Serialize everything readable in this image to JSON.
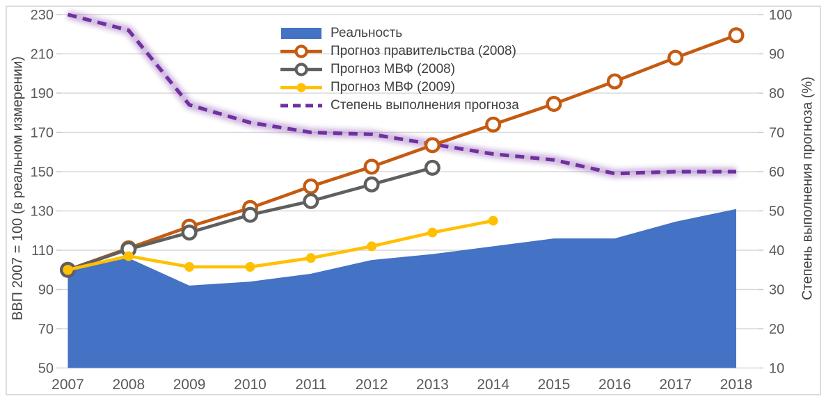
{
  "chart_data": {
    "type": "combo",
    "title": "",
    "grid": true,
    "legend_position": "top-center",
    "categories": [
      "2007",
      "2008",
      "2009",
      "2010",
      "2011",
      "2012",
      "2013",
      "2014",
      "2015",
      "2016",
      "2017",
      "2018"
    ],
    "left_axis": {
      "label": "ВВП 2007 = 100 (в реальном измерении)",
      "min": 50,
      "max": 230,
      "step": 20,
      "ticks": [
        230,
        210,
        190,
        170,
        150,
        130,
        110,
        90,
        70,
        50
      ]
    },
    "right_axis": {
      "label": "Степень выполнения прогноза (%)",
      "min": 10,
      "max": 100,
      "step": 10,
      "ticks": [
        100,
        90,
        80,
        70,
        60,
        50,
        40,
        30,
        20,
        10
      ]
    },
    "series": [
      {
        "name": "Реальность",
        "type": "area",
        "axis": "left",
        "color": "#4472C4",
        "values": [
          100,
          106,
          92,
          94,
          98,
          105,
          108,
          112,
          116,
          116,
          124.5,
          131
        ]
      },
      {
        "name": "Прогноз правительства (2008)",
        "type": "line",
        "marker": "open-circle",
        "axis": "left",
        "color": "#C55A11",
        "values": [
          100,
          111,
          122,
          131.5,
          142.5,
          152.5,
          163.5,
          174,
          184.5,
          196,
          208,
          219.5
        ]
      },
      {
        "name": "Прогноз МВФ (2008)",
        "type": "line",
        "marker": "open-circle",
        "axis": "left",
        "color": "#5F5F5F",
        "values": [
          100,
          110.5,
          119,
          128,
          135,
          143.5,
          152
        ]
      },
      {
        "name": "Прогноз МВФ (2009)",
        "type": "line",
        "marker": "dot",
        "axis": "left",
        "color": "#FFC000",
        "values": [
          100,
          107,
          101.5,
          101.5,
          106,
          112,
          119,
          125
        ]
      },
      {
        "name": "Степень выполнения прогноза",
        "type": "dashed-line",
        "axis": "right",
        "color": "#7030A0",
        "glow": true,
        "values": [
          100,
          96,
          77,
          72.5,
          70,
          69.5,
          67,
          64.5,
          63,
          59.5,
          60,
          60
        ]
      }
    ]
  }
}
